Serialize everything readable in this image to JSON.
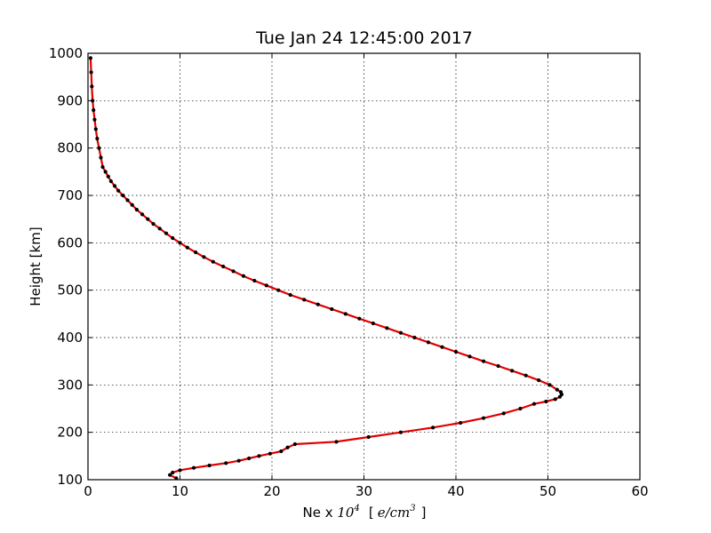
{
  "chart_data": {
    "type": "line",
    "title": "Tue Jan 24 12:45:00 2017",
    "xlabel_prefix": "Ne x ",
    "xlabel_power_base": "10",
    "xlabel_power_exp": "4",
    "xlabel_unit_open": "[",
    "xlabel_unit_e": "e/cm",
    "xlabel_unit_exp": "3",
    "xlabel_unit_close": "]",
    "ylabel": "Height [km]",
    "xlim": [
      0,
      60
    ],
    "ylim": [
      100,
      1000
    ],
    "xticks": [
      0,
      10,
      20,
      30,
      40,
      50,
      60
    ],
    "yticks": [
      100,
      200,
      300,
      400,
      500,
      600,
      700,
      800,
      900,
      1000
    ],
    "grid": true,
    "line_color": "#e00000",
    "marker_color": "#000000",
    "series": [
      {
        "x": [
          9.6,
          8.9,
          9.2,
          10.0,
          11.5,
          13.2,
          15.0,
          16.4,
          17.5,
          18.6,
          19.8,
          21.0,
          21.7,
          22.5,
          27.0,
          30.5,
          34.0,
          37.5,
          40.5,
          43.0,
          45.2,
          47.0,
          48.5,
          49.8,
          50.8,
          51.3,
          51.5,
          51.4,
          51.0,
          50.2,
          49.0,
          47.6,
          46.1,
          44.6,
          43.0,
          41.5,
          40.0,
          38.5,
          37.0,
          35.5,
          34.0,
          32.5,
          31.0,
          29.5,
          28.0,
          26.5,
          25.0,
          23.5,
          22.0,
          20.7,
          19.4,
          18.1,
          16.9,
          15.8,
          14.7,
          13.6,
          12.6,
          11.7,
          10.8,
          10.0,
          9.2,
          8.5,
          7.8,
          7.1,
          6.5,
          5.9,
          5.3,
          4.8,
          4.3,
          3.8,
          3.3,
          2.9,
          2.5,
          2.2,
          1.9,
          1.6,
          1.4,
          1.2,
          1.0,
          0.85,
          0.72,
          0.6,
          0.5,
          0.42,
          0.35,
          0.28
        ],
        "y": [
          103,
          110,
          115,
          120,
          125,
          130,
          135,
          140,
          145,
          150,
          155,
          160,
          168,
          175,
          180,
          190,
          200,
          210,
          220,
          230,
          240,
          250,
          260,
          265,
          270,
          275,
          280,
          285,
          290,
          300,
          310,
          320,
          330,
          340,
          350,
          360,
          370,
          380,
          390,
          400,
          410,
          420,
          430,
          440,
          450,
          460,
          470,
          480,
          490,
          500,
          510,
          520,
          530,
          540,
          550,
          560,
          570,
          580,
          590,
          600,
          610,
          620,
          630,
          640,
          650,
          660,
          670,
          680,
          690,
          700,
          710,
          720,
          730,
          740,
          750,
          760,
          780,
          800,
          820,
          840,
          860,
          880,
          900,
          930,
          960,
          990
        ]
      }
    ]
  }
}
